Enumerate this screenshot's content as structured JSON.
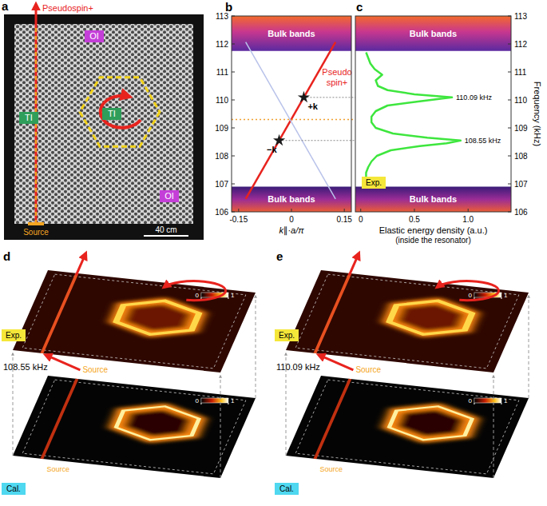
{
  "panel_a": {
    "label": "a",
    "arrow_label": "Pseudospin+",
    "regions": [
      {
        "text": "OI",
        "color": "#c43fd8"
      },
      {
        "text": "TI",
        "color": "#2e9e5a"
      },
      {
        "text": "TI",
        "color": "#2e9e5a"
      },
      {
        "text": "OI",
        "color": "#c43fd8"
      }
    ],
    "source": "Source",
    "scale_bar": "40 cm"
  },
  "chart_data": [
    {
      "panel": "b",
      "type": "line",
      "xlabel": "k∥·a/π",
      "xlim": [
        -0.17,
        0.17
      ],
      "xticks": [
        -0.15,
        0,
        0.15
      ],
      "ylim": [
        106,
        113
      ],
      "yticks": [
        106,
        107,
        108,
        109,
        110,
        111,
        112,
        113
      ],
      "bands": [
        {
          "label": "Bulk bands",
          "range": [
            111.75,
            113
          ]
        },
        {
          "label": "Bulk bands",
          "range": [
            106,
            106.9
          ]
        }
      ],
      "hlines": [
        109.3
      ],
      "series": [
        {
          "name": "Pseudo spin+",
          "color": "#e8231e",
          "x": [
            -0.13,
            0.125
          ],
          "values": [
            106.46,
            112.07
          ]
        },
        {
          "color": "#b9c3ea",
          "x": [
            -0.13,
            0.125
          ],
          "values": [
            112.07,
            106.46
          ]
        },
        {
          "type": "scatter",
          "marker": "star",
          "color": "#1a1a1a",
          "x": [
            -0.035,
            0.035
          ],
          "values": [
            108.55,
            110.09
          ],
          "labels": [
            "−k",
            "+k"
          ]
        }
      ]
    },
    {
      "panel": "c",
      "type": "line",
      "xlabel": "Elastic energy density (a.u.)",
      "xlabel_note": "(inside the resonator)",
      "ylabel": "Frequency (kHz)",
      "xlim": [
        -0.05,
        1.4
      ],
      "xticks": [
        0,
        0.5,
        {
          "value": 1,
          "label": "1.0"
        }
      ],
      "ylim": [
        106,
        113
      ],
      "yticks": [
        106,
        107,
        108,
        109,
        110,
        111,
        112,
        113
      ],
      "legend": "lower left",
      "bands": [
        {
          "label": "Bulk bands",
          "range": [
            111.75,
            113
          ]
        },
        {
          "label": "Bulk bands",
          "range": [
            106,
            106.9
          ]
        }
      ],
      "series": [
        {
          "name": "Exp.",
          "color": "#3ee63e",
          "x": [
            0.06,
            0.12,
            0.05,
            0.05,
            0.07,
            0.1,
            0.15,
            0.28,
            0.55,
            0.8,
            0.93,
            0.62,
            0.3,
            0.14,
            0.1,
            0.1,
            0.14,
            0.25,
            0.55,
            0.85,
            0.5,
            0.25,
            0.16,
            0.14,
            0.2,
            0.13,
            0.09,
            0.07,
            0.05
          ],
          "values": [
            106.9,
            107.0,
            107.2,
            107.4,
            107.6,
            107.8,
            108.0,
            108.2,
            108.35,
            108.45,
            108.55,
            108.65,
            108.8,
            109.0,
            109.2,
            109.4,
            109.6,
            109.8,
            109.95,
            110.09,
            110.2,
            110.35,
            110.5,
            110.7,
            110.9,
            111.1,
            111.3,
            111.5,
            111.7
          ]
        }
      ],
      "annotations": [
        {
          "text": "110.09 kHz",
          "value": 110.09
        },
        {
          "text": "108.55 kHz",
          "value": 108.55
        }
      ]
    }
  ],
  "panel_d": {
    "label": "d",
    "frequency": "108.55 kHz",
    "layers": [
      "Exp.",
      "Cal."
    ],
    "source_labels": [
      "Source",
      "Source"
    ],
    "colorbar_ticks": [
      0,
      1
    ]
  },
  "panel_e": {
    "label": "e",
    "frequency": "110.09 kHz",
    "layers": [
      "Exp.",
      "Cal."
    ],
    "source_labels": [
      "Source",
      "Source"
    ],
    "colorbar_ticks": [
      0,
      1
    ]
  }
}
